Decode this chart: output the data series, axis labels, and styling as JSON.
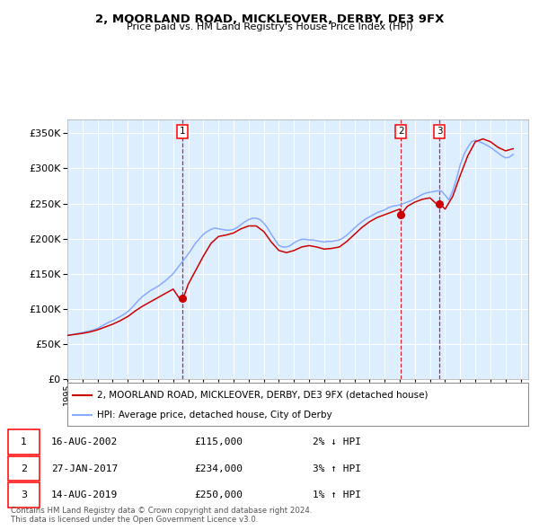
{
  "title": "2, MOORLAND ROAD, MICKLEOVER, DERBY, DE3 9FX",
  "subtitle": "Price paid vs. HM Land Registry's House Price Index (HPI)",
  "ylim": [
    0,
    370000
  ],
  "xlim_start": 1995.0,
  "xlim_end": 2025.5,
  "background_color": "#ffffff",
  "plot_bg_color": "#ddeeff",
  "grid_color": "#ffffff",
  "hpi_color": "#88aaff",
  "price_color": "#cc0000",
  "legend_items": [
    "2, MOORLAND ROAD, MICKLEOVER, DERBY, DE3 9FX (detached house)",
    "HPI: Average price, detached house, City of Derby"
  ],
  "transactions": [
    {
      "num": 1,
      "date": "16-AUG-2002",
      "price": 115000,
      "pct": "2%",
      "dir": "↓",
      "year": 2002.62
    },
    {
      "num": 2,
      "date": "27-JAN-2017",
      "price": 234000,
      "pct": "3%",
      "dir": "↑",
      "year": 2017.07
    },
    {
      "num": 3,
      "date": "14-AUG-2019",
      "price": 250000,
      "pct": "1%",
      "dir": "↑",
      "year": 2019.62
    }
  ],
  "footnote": "Contains HM Land Registry data © Crown copyright and database right 2024.\nThis data is licensed under the Open Government Licence v3.0.",
  "hpi_data_x": [
    1995.0,
    1995.25,
    1995.5,
    1995.75,
    1996.0,
    1996.25,
    1996.5,
    1996.75,
    1997.0,
    1997.25,
    1997.5,
    1997.75,
    1998.0,
    1998.25,
    1998.5,
    1998.75,
    1999.0,
    1999.25,
    1999.5,
    1999.75,
    2000.0,
    2000.25,
    2000.5,
    2000.75,
    2001.0,
    2001.25,
    2001.5,
    2001.75,
    2002.0,
    2002.25,
    2002.5,
    2002.75,
    2003.0,
    2003.25,
    2003.5,
    2003.75,
    2004.0,
    2004.25,
    2004.5,
    2004.75,
    2005.0,
    2005.25,
    2005.5,
    2005.75,
    2006.0,
    2006.25,
    2006.5,
    2006.75,
    2007.0,
    2007.25,
    2007.5,
    2007.75,
    2008.0,
    2008.25,
    2008.5,
    2008.75,
    2009.0,
    2009.25,
    2009.5,
    2009.75,
    2010.0,
    2010.25,
    2010.5,
    2010.75,
    2011.0,
    2011.25,
    2011.5,
    2011.75,
    2012.0,
    2012.25,
    2012.5,
    2012.75,
    2013.0,
    2013.25,
    2013.5,
    2013.75,
    2014.0,
    2014.25,
    2014.5,
    2014.75,
    2015.0,
    2015.25,
    2015.5,
    2015.75,
    2016.0,
    2016.25,
    2016.5,
    2016.75,
    2017.0,
    2017.25,
    2017.5,
    2017.75,
    2018.0,
    2018.25,
    2018.5,
    2018.75,
    2019.0,
    2019.25,
    2019.5,
    2019.75,
    2020.0,
    2020.25,
    2020.5,
    2020.75,
    2021.0,
    2021.25,
    2021.5,
    2021.75,
    2022.0,
    2022.25,
    2022.5,
    2022.75,
    2023.0,
    2023.25,
    2023.5,
    2023.75,
    2024.0,
    2024.25,
    2024.5
  ],
  "hpi_data_y": [
    62000,
    63000,
    64000,
    65000,
    66000,
    67500,
    68500,
    70000,
    72000,
    75000,
    78000,
    81000,
    83000,
    86000,
    89000,
    92000,
    96000,
    101000,
    107000,
    113000,
    118000,
    122000,
    126000,
    129000,
    132000,
    136000,
    140000,
    145000,
    150000,
    157000,
    164000,
    171000,
    178000,
    186000,
    194000,
    200000,
    206000,
    210000,
    213000,
    215000,
    214000,
    213000,
    212000,
    212000,
    213000,
    216000,
    220000,
    224000,
    227000,
    229000,
    229000,
    227000,
    222000,
    215000,
    206000,
    198000,
    190000,
    188000,
    188000,
    190000,
    194000,
    197000,
    199000,
    199000,
    198000,
    198000,
    197000,
    196000,
    195000,
    196000,
    196000,
    197000,
    198000,
    201000,
    205000,
    210000,
    215000,
    220000,
    224000,
    228000,
    231000,
    234000,
    237000,
    239000,
    241000,
    244000,
    246000,
    247000,
    248000,
    250000,
    252000,
    254000,
    257000,
    260000,
    263000,
    265000,
    266000,
    267000,
    268000,
    268000,
    262000,
    255000,
    268000,
    285000,
    305000,
    320000,
    330000,
    338000,
    340000,
    338000,
    336000,
    333000,
    330000,
    326000,
    322000,
    318000,
    315000,
    316000,
    320000
  ],
  "price_data_x": [
    1995.0,
    1995.5,
    1996.0,
    1996.5,
    1997.0,
    1997.5,
    1998.0,
    1998.5,
    1999.0,
    1999.5,
    2000.0,
    2000.5,
    2001.0,
    2001.5,
    2002.0,
    2002.5,
    2002.62,
    2002.75,
    2003.0,
    2003.5,
    2004.0,
    2004.5,
    2005.0,
    2005.5,
    2006.0,
    2006.5,
    2007.0,
    2007.5,
    2008.0,
    2008.5,
    2009.0,
    2009.5,
    2010.0,
    2010.5,
    2011.0,
    2011.5,
    2012.0,
    2012.5,
    2013.0,
    2013.5,
    2014.0,
    2014.5,
    2015.0,
    2015.5,
    2016.0,
    2016.5,
    2017.0,
    2017.07,
    2017.5,
    2018.0,
    2018.5,
    2019.0,
    2019.5,
    2019.62,
    2020.0,
    2020.5,
    2021.0,
    2021.5,
    2022.0,
    2022.5,
    2023.0,
    2023.5,
    2024.0,
    2024.5
  ],
  "price_data_y": [
    62000,
    63500,
    65000,
    67000,
    70000,
    74000,
    78000,
    83000,
    89000,
    97000,
    104000,
    110000,
    116000,
    122000,
    128000,
    112000,
    115000,
    120000,
    135000,
    155000,
    175000,
    193000,
    203000,
    205000,
    208000,
    214000,
    218000,
    218000,
    210000,
    195000,
    183000,
    180000,
    183000,
    188000,
    190000,
    188000,
    185000,
    186000,
    188000,
    196000,
    206000,
    216000,
    224000,
    230000,
    234000,
    238000,
    242000,
    234000,
    246000,
    252000,
    256000,
    258000,
    248000,
    250000,
    242000,
    260000,
    290000,
    318000,
    338000,
    342000,
    338000,
    330000,
    325000,
    328000
  ]
}
